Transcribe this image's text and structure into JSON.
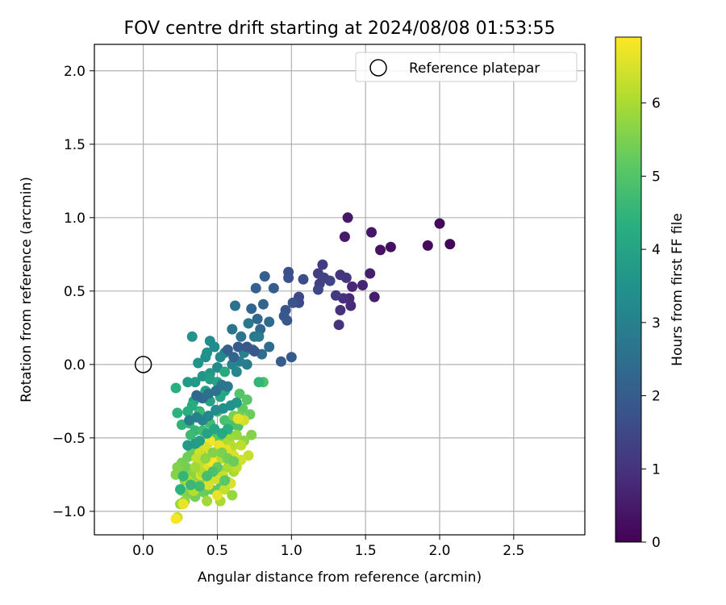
{
  "chart_data": {
    "type": "scatter",
    "title": "FOV centre drift starting at 2024/08/08 01:53:55",
    "xlabel": "Angular distance from reference (arcmin)",
    "ylabel": "Rotation from reference (arcmin)",
    "xlim": [
      -0.33,
      2.98
    ],
    "ylim": [
      -1.16,
      2.18
    ],
    "xticks": [
      0.0,
      0.5,
      1.0,
      1.5,
      2.0,
      2.5
    ],
    "xtick_labels": [
      "0.0",
      "0.5",
      "1.0",
      "1.5",
      "2.0",
      "2.5"
    ],
    "yticks": [
      -1.0,
      -0.5,
      0.0,
      0.5,
      1.0,
      1.5,
      2.0
    ],
    "ytick_labels": [
      "−1.0",
      "−0.5",
      "0.0",
      "0.5",
      "1.0",
      "1.5",
      "2.0"
    ],
    "grid": true,
    "legend": {
      "position": "top-right",
      "entries": [
        "Reference platepar"
      ]
    },
    "reference_point": {
      "x": 0.0,
      "y": 0.0
    },
    "colorbar": {
      "label": "Hours from first FF file",
      "range": [
        0,
        6.9
      ],
      "ticks": [
        0,
        1,
        2,
        3,
        4,
        5,
        6
      ],
      "tick_labels": [
        "0",
        "1",
        "2",
        "3",
        "4",
        "5",
        "6"
      ],
      "colormap": "viridis"
    },
    "points": [
      [
        2.07,
        0.82,
        0.1
      ],
      [
        2.0,
        0.96,
        0.15
      ],
      [
        1.92,
        0.81,
        0.2
      ],
      [
        1.67,
        0.8,
        0.3
      ],
      [
        1.6,
        0.78,
        0.35
      ],
      [
        1.54,
        0.9,
        0.4
      ],
      [
        1.38,
        1.0,
        0.45
      ],
      [
        1.36,
        0.87,
        0.5
      ],
      [
        1.56,
        0.46,
        0.55
      ],
      [
        1.53,
        0.62,
        0.6
      ],
      [
        1.48,
        0.54,
        0.7
      ],
      [
        1.41,
        0.53,
        0.75
      ],
      [
        1.39,
        0.45,
        0.8
      ],
      [
        1.4,
        0.4,
        0.85
      ],
      [
        1.35,
        0.45,
        0.9
      ],
      [
        1.33,
        0.37,
        0.95
      ],
      [
        1.32,
        0.27,
        1.0
      ],
      [
        1.33,
        0.61,
        1.05
      ],
      [
        1.37,
        0.59,
        1.1
      ],
      [
        1.3,
        0.47,
        1.15
      ],
      [
        1.21,
        0.68,
        1.2
      ],
      [
        1.18,
        0.62,
        1.25
      ],
      [
        1.19,
        0.55,
        1.3
      ],
      [
        1.22,
        0.59,
        1.35
      ],
      [
        1.26,
        0.57,
        1.4
      ],
      [
        1.18,
        0.51,
        1.45
      ],
      [
        1.05,
        0.46,
        1.5
      ],
      [
        1.05,
        0.42,
        1.55
      ],
      [
        1.08,
        0.58,
        1.6
      ],
      [
        0.98,
        0.63,
        1.65
      ],
      [
        0.98,
        0.59,
        1.7
      ],
      [
        1.01,
        0.42,
        1.75
      ],
      [
        0.96,
        0.37,
        1.8
      ],
      [
        0.97,
        0.3,
        1.85
      ],
      [
        0.95,
        0.33,
        1.9
      ],
      [
        1.0,
        0.05,
        1.95
      ],
      [
        0.93,
        0.02,
        2.0
      ],
      [
        0.88,
        0.52,
        2.05
      ],
      [
        0.82,
        0.6,
        2.1
      ],
      [
        0.76,
        0.52,
        2.15
      ],
      [
        0.81,
        0.41,
        2.2
      ],
      [
        0.73,
        0.38,
        2.25
      ],
      [
        0.77,
        0.31,
        2.3
      ],
      [
        0.79,
        0.24,
        2.35
      ],
      [
        0.85,
        0.29,
        2.4
      ],
      [
        0.85,
        0.12,
        2.45
      ],
      [
        0.8,
        0.07,
        2.5
      ],
      [
        0.74,
        0.1,
        2.55
      ],
      [
        0.62,
        0.4,
        2.6
      ],
      [
        0.6,
        0.24,
        2.65
      ],
      [
        0.66,
        0.19,
        2.7
      ],
      [
        0.71,
        0.28,
        2.75
      ],
      [
        0.75,
        0.19,
        2.8
      ],
      [
        0.78,
        0.19,
        2.85
      ],
      [
        0.7,
        0.0,
        2.9
      ],
      [
        0.65,
        0.02,
        2.95
      ],
      [
        0.68,
        0.08,
        3.0
      ],
      [
        0.55,
        0.08,
        3.05
      ],
      [
        0.6,
        0.0,
        3.1
      ],
      [
        0.63,
        -0.05,
        3.15
      ],
      [
        0.52,
        0.05,
        3.2
      ],
      [
        0.5,
        -0.02,
        3.25
      ],
      [
        0.48,
        0.12,
        3.3
      ],
      [
        0.45,
        0.16,
        3.35
      ],
      [
        0.42,
        0.05,
        3.4
      ],
      [
        0.43,
        0.08,
        3.45
      ],
      [
        0.37,
        0.01,
        3.5
      ],
      [
        0.33,
        0.19,
        3.55
      ],
      [
        0.4,
        -0.08,
        3.6
      ],
      [
        0.45,
        -0.06,
        3.65
      ],
      [
        0.35,
        -0.12,
        3.7
      ],
      [
        0.3,
        -0.12,
        3.75
      ],
      [
        0.34,
        -0.25,
        3.8
      ],
      [
        0.45,
        -0.1,
        3.85
      ],
      [
        0.42,
        -0.18,
        3.9
      ],
      [
        0.45,
        -0.25,
        3.95
      ],
      [
        0.5,
        -0.12,
        4.0
      ],
      [
        0.55,
        -0.18,
        4.05
      ],
      [
        0.52,
        -0.22,
        4.1
      ],
      [
        0.55,
        -0.05,
        4.15
      ],
      [
        0.38,
        -0.32,
        4.2
      ],
      [
        0.33,
        -0.28,
        4.25
      ],
      [
        0.3,
        -0.32,
        4.3
      ],
      [
        0.22,
        -0.16,
        4.35
      ],
      [
        0.23,
        -0.33,
        4.4
      ],
      [
        0.26,
        -0.41,
        4.45
      ],
      [
        0.31,
        -0.4,
        4.5
      ],
      [
        0.35,
        -0.45,
        4.55
      ],
      [
        0.38,
        -0.33,
        4.6
      ],
      [
        0.32,
        -0.48,
        4.65
      ],
      [
        0.4,
        -0.45,
        4.7
      ],
      [
        0.45,
        -0.4,
        4.75
      ],
      [
        0.5,
        -0.32,
        4.8
      ],
      [
        0.55,
        -0.38,
        4.85
      ],
      [
        0.6,
        -0.41,
        4.9
      ],
      [
        0.64,
        -0.42,
        4.95
      ],
      [
        0.58,
        -0.48,
        5.0
      ],
      [
        0.52,
        -0.52,
        5.05
      ],
      [
        0.47,
        -0.5,
        5.1
      ],
      [
        0.44,
        -0.53,
        5.15
      ],
      [
        0.4,
        -0.58,
        5.2
      ],
      [
        0.35,
        -0.6,
        5.25
      ],
      [
        0.32,
        -0.57,
        5.3
      ],
      [
        0.3,
        -0.63,
        5.35
      ],
      [
        0.29,
        -0.7,
        5.4
      ],
      [
        0.26,
        -0.67,
        5.45
      ],
      [
        0.25,
        -0.73,
        5.5
      ],
      [
        0.23,
        -0.7,
        5.55
      ],
      [
        0.22,
        -0.75,
        5.6
      ],
      [
        0.28,
        -0.79,
        5.65
      ],
      [
        0.33,
        -0.75,
        5.7
      ],
      [
        0.37,
        -0.8,
        5.75
      ],
      [
        0.42,
        -0.78,
        5.8
      ],
      [
        0.47,
        -0.75,
        5.85
      ],
      [
        0.52,
        -0.72,
        5.9
      ],
      [
        0.57,
        -0.7,
        5.95
      ],
      [
        0.61,
        -0.73,
        6.0
      ],
      [
        0.57,
        -0.8,
        5.0
      ],
      [
        0.52,
        -0.84,
        5.1
      ],
      [
        0.46,
        -0.85,
        5.2
      ],
      [
        0.41,
        -0.87,
        5.3
      ],
      [
        0.35,
        -0.9,
        5.4
      ],
      [
        0.3,
        -0.88,
        5.5
      ],
      [
        0.26,
        -0.86,
        5.6
      ],
      [
        0.28,
        -0.93,
        5.7
      ],
      [
        0.25,
        -0.95,
        5.8
      ],
      [
        0.43,
        -0.93,
        5.9
      ],
      [
        0.52,
        -0.93,
        6.0
      ],
      [
        0.81,
        -0.12,
        4.9
      ],
      [
        0.65,
        -0.2,
        5.0
      ],
      [
        0.7,
        -0.24,
        5.1
      ],
      [
        0.67,
        -0.3,
        5.2
      ],
      [
        0.72,
        -0.34,
        5.3
      ],
      [
        0.65,
        -0.35,
        5.4
      ],
      [
        0.61,
        -0.35,
        5.5
      ],
      [
        0.73,
        -0.48,
        5.6
      ],
      [
        0.68,
        -0.52,
        5.7
      ],
      [
        0.63,
        -0.48,
        5.8
      ],
      [
        0.58,
        -0.51,
        5.9
      ],
      [
        0.56,
        -0.54,
        6.0
      ],
      [
        0.6,
        -0.56,
        6.1
      ],
      [
        0.66,
        -0.55,
        6.2
      ],
      [
        0.71,
        -0.62,
        6.3
      ],
      [
        0.66,
        -0.65,
        6.4
      ],
      [
        0.61,
        -0.62,
        6.5
      ],
      [
        0.56,
        -0.58,
        6.6
      ],
      [
        0.51,
        -0.55,
        6.7
      ],
      [
        0.45,
        -0.52,
        6.8
      ],
      [
        0.42,
        -0.56,
        6.5
      ],
      [
        0.38,
        -0.6,
        6.4
      ],
      [
        0.36,
        -0.64,
        6.3
      ],
      [
        0.4,
        -0.68,
        6.2
      ],
      [
        0.44,
        -0.7,
        6.6
      ],
      [
        0.48,
        -0.66,
        6.7
      ],
      [
        0.53,
        -0.64,
        6.1
      ],
      [
        0.58,
        -0.68,
        6.0
      ],
      [
        0.63,
        -0.7,
        6.2
      ],
      [
        0.54,
        -0.76,
        6.3
      ],
      [
        0.49,
        -0.78,
        6.4
      ],
      [
        0.44,
        -0.82,
        6.5
      ],
      [
        0.39,
        -0.75,
        6.6
      ],
      [
        0.34,
        -0.86,
        6.1
      ],
      [
        0.3,
        -0.79,
        6.0
      ],
      [
        0.27,
        -0.95,
        6.7
      ],
      [
        0.23,
        -1.04,
        6.2
      ],
      [
        0.22,
        -1.05,
        6.8
      ],
      [
        0.59,
        -0.81,
        6.5
      ],
      [
        0.5,
        -0.89,
        6.7
      ],
      [
        0.55,
        -0.85,
        6.3
      ],
      [
        0.6,
        -0.89,
        5.8
      ],
      [
        0.68,
        -0.38,
        6.4
      ],
      [
        0.64,
        -0.37,
        6.6
      ],
      [
        0.45,
        -0.62,
        6.8
      ],
      [
        0.46,
        -0.66,
        6.9
      ],
      [
        0.4,
        -0.74,
        6.1
      ],
      [
        0.35,
        -0.7,
        5.9
      ],
      [
        0.42,
        -0.64,
        5.7
      ],
      [
        0.47,
        -0.6,
        5.6
      ],
      [
        0.53,
        -0.6,
        5.5
      ],
      [
        0.57,
        -0.64,
        5.4
      ],
      [
        0.61,
        -0.66,
        5.3
      ],
      [
        0.5,
        -0.7,
        5.2
      ],
      [
        0.55,
        -0.79,
        5.1
      ],
      [
        0.47,
        -0.73,
        4.9
      ],
      [
        0.43,
        -0.76,
        4.8
      ],
      [
        0.38,
        -0.83,
        4.7
      ],
      [
        0.32,
        -0.82,
        4.6
      ],
      [
        0.27,
        -0.76,
        4.5
      ],
      [
        0.25,
        -0.85,
        4.4
      ],
      [
        0.57,
        -0.44,
        4.3
      ],
      [
        0.53,
        -0.47,
        4.2
      ],
      [
        0.48,
        -0.44,
        4.1
      ],
      [
        0.43,
        -0.47,
        4.0
      ],
      [
        0.38,
        -0.52,
        3.9
      ],
      [
        0.35,
        -0.54,
        3.8
      ],
      [
        0.3,
        -0.55,
        3.7
      ],
      [
        0.63,
        -0.26,
        3.6
      ],
      [
        0.59,
        -0.28,
        3.5
      ],
      [
        0.54,
        -0.3,
        3.4
      ],
      [
        0.49,
        -0.31,
        3.3
      ],
      [
        0.44,
        -0.35,
        3.2
      ],
      [
        0.4,
        -0.38,
        3.1
      ],
      [
        0.36,
        -0.36,
        3.0
      ],
      [
        0.31,
        -0.38,
        2.9
      ],
      [
        0.57,
        -0.15,
        2.8
      ],
      [
        0.53,
        -0.14,
        2.7
      ],
      [
        0.49,
        -0.18,
        2.6
      ],
      [
        0.44,
        -0.2,
        2.5
      ],
      [
        0.4,
        -0.23,
        2.4
      ],
      [
        0.36,
        -0.21,
        2.3
      ],
      [
        0.61,
        0.05,
        2.2
      ],
      [
        0.57,
        0.1,
        2.1
      ],
      [
        0.64,
        0.12,
        2.0
      ],
      [
        0.7,
        0.12,
        1.9
      ],
      [
        0.75,
        0.09,
        1.85
      ],
      [
        0.78,
        -0.12,
        4.5
      ]
    ]
  }
}
